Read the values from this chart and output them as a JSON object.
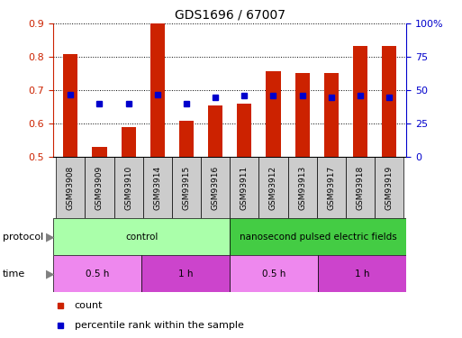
{
  "title": "GDS1696 / 67007",
  "samples": [
    "GSM93908",
    "GSM93909",
    "GSM93910",
    "GSM93914",
    "GSM93915",
    "GSM93916",
    "GSM93911",
    "GSM93912",
    "GSM93913",
    "GSM93917",
    "GSM93918",
    "GSM93919"
  ],
  "red_values": [
    0.81,
    0.53,
    0.59,
    0.9,
    0.61,
    0.655,
    0.66,
    0.757,
    0.752,
    0.752,
    0.832,
    0.832
  ],
  "blue_values": [
    47,
    40,
    40,
    47,
    40,
    45,
    46,
    46,
    46,
    45,
    46,
    45
  ],
  "ylim_left": [
    0.5,
    0.9
  ],
  "ylim_right": [
    0,
    100
  ],
  "yticks_left": [
    0.5,
    0.6,
    0.7,
    0.8,
    0.9
  ],
  "yticks_right": [
    0,
    25,
    50,
    75,
    100
  ],
  "ytick_labels_right": [
    "0",
    "25",
    "50",
    "75",
    "100%"
  ],
  "bar_color": "#cc2200",
  "blue_color": "#0000cc",
  "bar_width": 0.5,
  "left_axis_color": "#cc2200",
  "right_axis_color": "#0000cc",
  "control_color": "#aaffaa",
  "npef_color": "#44cc44",
  "time_light_color": "#ee88ee",
  "time_dark_color": "#cc44cc",
  "sample_bg_color": "#cccccc",
  "legend_count_color": "#cc2200",
  "legend_pct_color": "#0000cc",
  "protocol_blocks": [
    {
      "text": "control",
      "span": 6
    },
    {
      "text": "nanosecond pulsed electric fields",
      "span": 6
    }
  ],
  "time_blocks": [
    {
      "text": "0.5 h",
      "span": 3,
      "light": true
    },
    {
      "text": "1 h",
      "span": 3,
      "light": false
    },
    {
      "text": "0.5 h",
      "span": 3,
      "light": true
    },
    {
      "text": "1 h",
      "span": 3,
      "light": false
    }
  ]
}
